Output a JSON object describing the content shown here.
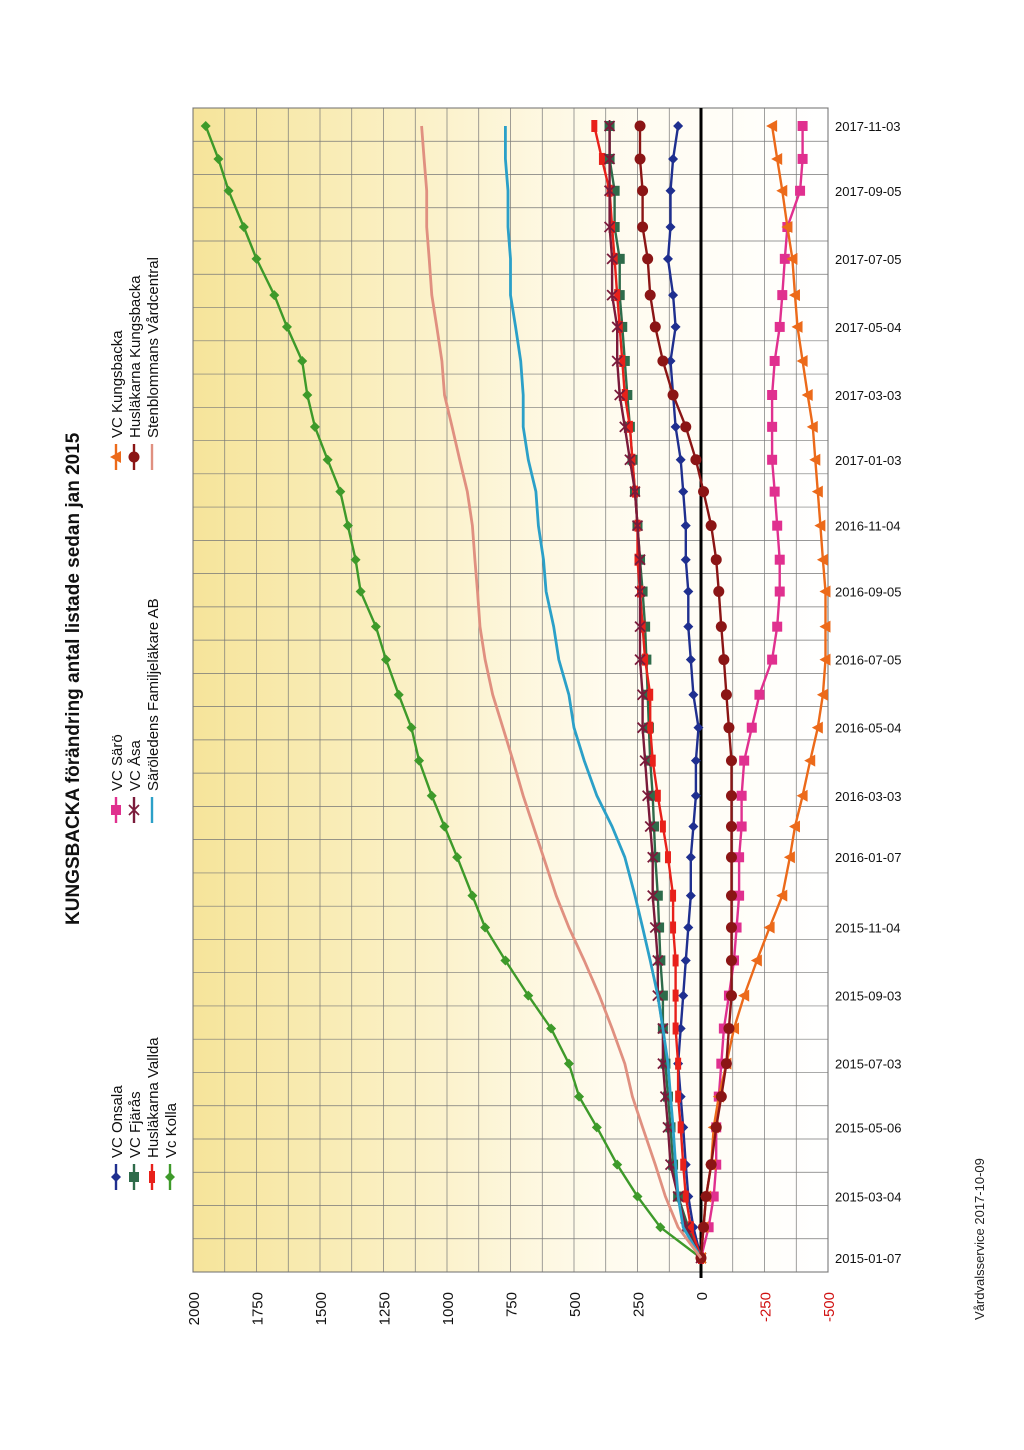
{
  "footer": "Vårdvalsservice 2017-10-09",
  "chart_data": {
    "type": "line",
    "title": "KUNGSBACKA förändring antal listade sedan jan 2015",
    "orientation": "rotated-90",
    "xlabel": "",
    "ylabel": "",
    "x": [
      "2015-01-07",
      "2015-02-04",
      "2015-03-04",
      "2015-04-02",
      "2015-05-06",
      "2015-06-03",
      "2015-07-03",
      "2015-08-04",
      "2015-09-03",
      "2015-10-05",
      "2015-11-04",
      "2015-12-03",
      "2016-01-07",
      "2016-02-04",
      "2016-03-03",
      "2016-04-04",
      "2016-05-04",
      "2016-06-03",
      "2016-07-05",
      "2016-08-04",
      "2016-09-05",
      "2016-10-04",
      "2016-11-04",
      "2016-12-05",
      "2017-01-03",
      "2017-02-02",
      "2017-03-03",
      "2017-04-03",
      "2017-05-04",
      "2017-06-02",
      "2017-07-05",
      "2017-08-03",
      "2017-09-05",
      "2017-10-04",
      "2017-11-03"
    ],
    "x_tick_labels": [
      "2015-01-07",
      "2015-03-04",
      "2015-05-06",
      "2015-07-03",
      "2015-09-03",
      "2015-11-04",
      "2016-01-07",
      "2016-03-03",
      "2016-05-04",
      "2016-07-05",
      "2016-09-05",
      "2016-11-04",
      "2017-01-03",
      "2017-03-03",
      "2017-05-04",
      "2017-07-05",
      "2017-09-05",
      "2017-11-03"
    ],
    "y_ticks": [
      "2000",
      "1750",
      "1500",
      "1250",
      "1000",
      "750",
      "500",
      "250",
      "0",
      "-250",
      "-500"
    ],
    "ylim": [
      -500,
      2000
    ],
    "grid": true,
    "legend_position": "top",
    "series": [
      {
        "name": "VC Onsala",
        "color": "#1f2f8f",
        "marker": "diamond",
        "values": [
          0,
          30,
          50,
          60,
          70,
          80,
          90,
          80,
          70,
          60,
          50,
          40,
          40,
          30,
          20,
          20,
          10,
          30,
          40,
          50,
          50,
          60,
          60,
          70,
          80,
          100,
          110,
          120,
          100,
          110,
          130,
          120,
          120,
          110,
          90
        ]
      },
      {
        "name": "VC Fjärås",
        "color": "#2e6b4a",
        "marker": "square",
        "values": [
          0,
          50,
          90,
          110,
          120,
          130,
          140,
          150,
          150,
          160,
          165,
          170,
          180,
          185,
          190,
          200,
          205,
          210,
          215,
          220,
          230,
          240,
          250,
          260,
          270,
          280,
          290,
          300,
          310,
          320,
          320,
          340,
          340,
          360,
          360
        ]
      },
      {
        "name": "Husläkarna Vallda",
        "color": "#e8201a",
        "marker": "bar",
        "values": [
          0,
          40,
          60,
          70,
          80,
          90,
          90,
          100,
          100,
          100,
          110,
          110,
          130,
          150,
          170,
          190,
          200,
          200,
          220,
          230,
          240,
          250,
          250,
          260,
          270,
          280,
          300,
          310,
          320,
          330,
          340,
          350,
          360,
          390,
          420
        ]
      },
      {
        "name": "Vc Kolla",
        "color": "#3e9a2a",
        "marker": "diamond",
        "values": [
          0,
          160,
          250,
          330,
          410,
          480,
          520,
          590,
          680,
          770,
          850,
          900,
          960,
          1010,
          1060,
          1110,
          1140,
          1190,
          1240,
          1280,
          1340,
          1360,
          1390,
          1420,
          1470,
          1520,
          1550,
          1570,
          1630,
          1680,
          1750,
          1800,
          1860,
          1900,
          1950
        ]
      },
      {
        "name": "VC Särö",
        "color": "#e0308f",
        "marker": "square",
        "values": [
          0,
          -30,
          -50,
          -60,
          -60,
          -70,
          -80,
          -90,
          -110,
          -130,
          -140,
          -150,
          -150,
          -160,
          -160,
          -170,
          -200,
          -230,
          -280,
          -300,
          -310,
          -310,
          -300,
          -290,
          -280,
          -280,
          -280,
          -290,
          -310,
          -320,
          -330,
          -340,
          -390,
          -400,
          -400
        ]
      },
      {
        "name": "VC Åsa",
        "color": "#7a1a3a",
        "marker": "star",
        "values": [
          0,
          60,
          90,
          120,
          130,
          140,
          150,
          150,
          170,
          170,
          180,
          190,
          190,
          200,
          210,
          220,
          230,
          230,
          240,
          240,
          240,
          240,
          250,
          260,
          280,
          300,
          320,
          330,
          330,
          350,
          350,
          360,
          360,
          360,
          360
        ]
      },
      {
        "name": "Säröledens Familjeläkare AB",
        "color": "#2ba0c8",
        "marker": "none",
        "values": [
          0,
          70,
          90,
          100,
          110,
          120,
          130,
          150,
          170,
          200,
          230,
          260,
          300,
          350,
          410,
          460,
          500,
          520,
          560,
          580,
          610,
          620,
          640,
          650,
          680,
          700,
          700,
          710,
          730,
          750,
          750,
          760,
          760,
          770,
          770
        ]
      },
      {
        "name": "VC Kungsbacka",
        "color": "#ec6a1a",
        "marker": "triangle",
        "values": [
          0,
          -10,
          -20,
          -40,
          -50,
          -70,
          -100,
          -130,
          -170,
          -220,
          -270,
          -320,
          -350,
          -370,
          -400,
          -430,
          -460,
          -480,
          -490,
          -490,
          -490,
          -480,
          -470,
          -460,
          -450,
          -440,
          -420,
          -400,
          -380,
          -370,
          -360,
          -340,
          -320,
          -300,
          -280
        ]
      },
      {
        "name": "Husläkarna Kungsbacka",
        "color": "#8b1515",
        "marker": "circle",
        "values": [
          0,
          -10,
          -20,
          -40,
          -60,
          -80,
          -100,
          -110,
          -120,
          -120,
          -120,
          -120,
          -120,
          -120,
          -120,
          -120,
          -110,
          -100,
          -90,
          -80,
          -70,
          -60,
          -40,
          -10,
          20,
          60,
          110,
          150,
          180,
          200,
          210,
          230,
          230,
          240,
          240
        ]
      },
      {
        "name": "Stenblommans Vårdcentral",
        "color": "#e09080",
        "marker": "none",
        "values": [
          0,
          90,
          140,
          180,
          230,
          270,
          300,
          350,
          400,
          460,
          520,
          570,
          620,
          660,
          700,
          740,
          780,
          820,
          850,
          870,
          880,
          890,
          900,
          920,
          950,
          980,
          1010,
          1020,
          1040,
          1060,
          1070,
          1080,
          1080,
          1090,
          1100
        ]
      }
    ]
  }
}
